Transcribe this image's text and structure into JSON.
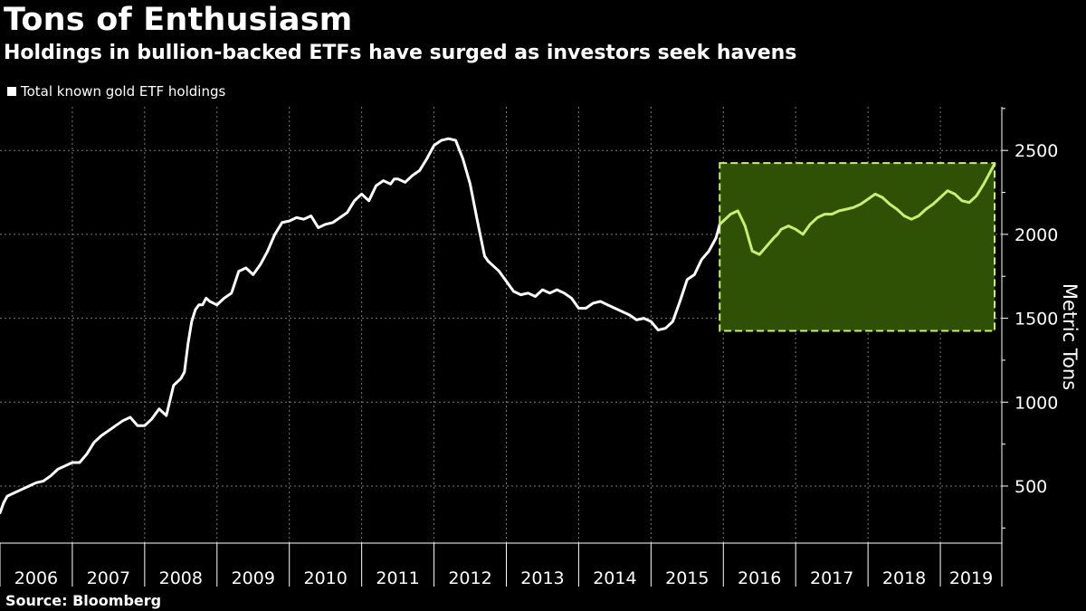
{
  "header": {
    "title": "Tons of Enthusiasm",
    "subtitle": "Holdings in bullion-backed ETFs have surged as investors seek havens"
  },
  "legend": {
    "label": "Total known gold ETF holdings"
  },
  "source": "Source: Bloomberg",
  "colors": {
    "line": "#ffffff",
    "highlight_fill": "#2e5106",
    "highlight_line": "#c8f06e",
    "grid": "#7a7a7a"
  },
  "chart_data": {
    "type": "line",
    "title": "Tons of Enthusiasm",
    "subtitle": "Holdings in bullion-backed ETFs have surged as investors seek havens",
    "xlabel": "",
    "ylabel": "Metric Tons",
    "xlim": [
      2006,
      2019.85
    ],
    "ylim": [
      160,
      2760
    ],
    "yticks": [
      500,
      1000,
      1500,
      2000,
      2500
    ],
    "x_tick_labels": [
      "2006",
      "2007",
      "2008",
      "2009",
      "2010",
      "2011",
      "2012",
      "2013",
      "2014",
      "2015",
      "2016",
      "2017",
      "2018",
      "2019"
    ],
    "grid": true,
    "legend_position": "top-left",
    "series": [
      {
        "name": "Total known gold ETF holdings",
        "x": [
          2006.0,
          2006.05,
          2006.1,
          2006.2,
          2006.3,
          2006.4,
          2006.5,
          2006.6,
          2006.7,
          2006.8,
          2006.9,
          2007.0,
          2007.1,
          2007.2,
          2007.3,
          2007.4,
          2007.5,
          2007.6,
          2007.7,
          2007.8,
          2007.9,
          2008.0,
          2008.1,
          2008.2,
          2008.3,
          2008.4,
          2008.5,
          2008.55,
          2008.6,
          2008.65,
          2008.7,
          2008.75,
          2008.8,
          2008.85,
          2008.9,
          2009.0,
          2009.05,
          2009.1,
          2009.2,
          2009.3,
          2009.4,
          2009.5,
          2009.6,
          2009.7,
          2009.8,
          2009.9,
          2010.0,
          2010.1,
          2010.2,
          2010.3,
          2010.4,
          2010.5,
          2010.6,
          2010.7,
          2010.8,
          2010.9,
          2011.0,
          2011.1,
          2011.2,
          2011.3,
          2011.4,
          2011.45,
          2011.5,
          2011.6,
          2011.7,
          2011.8,
          2011.9,
          2012.0,
          2012.1,
          2012.2,
          2012.3,
          2012.4,
          2012.5,
          2012.6,
          2012.7,
          2012.75,
          2012.8,
          2012.9,
          2013.0,
          2013.1,
          2013.2,
          2013.3,
          2013.4,
          2013.5,
          2013.6,
          2013.7,
          2013.8,
          2013.9,
          2014.0,
          2014.1,
          2014.2,
          2014.3,
          2014.4,
          2014.5,
          2014.6,
          2014.7,
          2014.8,
          2014.9,
          2015.0,
          2015.1,
          2015.2,
          2015.3,
          2015.4,
          2015.5,
          2015.6,
          2015.7,
          2015.8,
          2015.9,
          2015.95,
          2016.0,
          2016.1,
          2016.2,
          2016.3,
          2016.4,
          2016.5,
          2016.6,
          2016.7,
          2016.75,
          2016.8,
          2016.9,
          2017.0,
          2017.1,
          2017.2,
          2017.3,
          2017.4,
          2017.5,
          2017.6,
          2017.7,
          2017.8,
          2017.9,
          2018.0,
          2018.1,
          2018.2,
          2018.3,
          2018.4,
          2018.5,
          2018.6,
          2018.7,
          2018.8,
          2018.9,
          2019.0,
          2019.1,
          2019.2,
          2019.3,
          2019.4,
          2019.5,
          2019.6,
          2019.7,
          2019.75
        ],
        "values": [
          340,
          400,
          440,
          460,
          480,
          500,
          520,
          530,
          560,
          600,
          620,
          640,
          640,
          690,
          760,
          800,
          830,
          860,
          890,
          910,
          860,
          860,
          900,
          960,
          920,
          1100,
          1140,
          1180,
          1350,
          1480,
          1550,
          1580,
          1580,
          1620,
          1600,
          1580,
          1600,
          1620,
          1650,
          1780,
          1800,
          1760,
          1820,
          1900,
          2000,
          2070,
          2080,
          2100,
          2090,
          2110,
          2040,
          2060,
          2070,
          2100,
          2130,
          2200,
          2240,
          2200,
          2290,
          2320,
          2300,
          2330,
          2330,
          2310,
          2350,
          2380,
          2450,
          2530,
          2560,
          2570,
          2560,
          2450,
          2300,
          2080,
          1870,
          1840,
          1820,
          1780,
          1720,
          1660,
          1640,
          1650,
          1630,
          1670,
          1650,
          1670,
          1650,
          1620,
          1560,
          1560,
          1590,
          1600,
          1580,
          1560,
          1540,
          1520,
          1490,
          1500,
          1480,
          1430,
          1440,
          1480,
          1600,
          1730,
          1760,
          1850,
          1900,
          1980,
          2060,
          2080,
          2120,
          2140,
          2050,
          1900,
          1880,
          1930,
          1980,
          2000,
          2030,
          2050,
          2030,
          2000,
          2060,
          2100,
          2120,
          2120,
          2140,
          2150,
          2160,
          2180,
          2210,
          2240,
          2220,
          2180,
          2150,
          2110,
          2090,
          2110,
          2150,
          2180,
          2220,
          2260,
          2240,
          2200,
          2190,
          2230,
          2300,
          2380,
          2420
        ]
      }
    ],
    "highlight_region": {
      "x_start": 2015.95,
      "x_end": 2019.75,
      "y_start": 1425,
      "y_end": 2425
    }
  }
}
